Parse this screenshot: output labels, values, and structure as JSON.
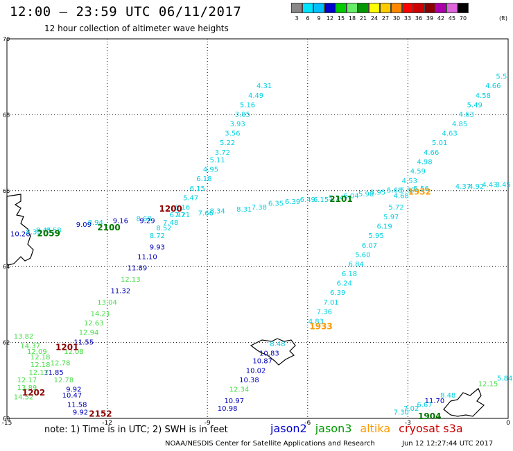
{
  "header": {
    "title": "12:00 – 23:59 UTC 06/11/2017",
    "subtitle": "12 hour collection of altimeter wave heights"
  },
  "legend": {
    "unit": "(ft)",
    "bins": [
      {
        "label": "3",
        "color": "#888888"
      },
      {
        "label": "6",
        "color": "#00e5ff"
      },
      {
        "label": "9",
        "color": "#00bfff"
      },
      {
        "label": "12",
        "color": "#0000cc"
      },
      {
        "label": "15",
        "color": "#00cc00"
      },
      {
        "label": "18",
        "color": "#66ee66"
      },
      {
        "label": "21",
        "color": "#009900"
      },
      {
        "label": "24",
        "color": "#ffff00"
      },
      {
        "label": "27",
        "color": "#ffcc00"
      },
      {
        "label": "30",
        "color": "#ff8800"
      },
      {
        "label": "33",
        "color": "#ff0000"
      },
      {
        "label": "36",
        "color": "#cc0000"
      },
      {
        "label": "39",
        "color": "#880000"
      },
      {
        "label": "42",
        "color": "#aa00aa"
      },
      {
        "label": "45",
        "color": "#dd66dd"
      },
      {
        "label": "70",
        "color": "#000000"
      }
    ]
  },
  "map": {
    "lon_range": [
      -15,
      0
    ],
    "lat_range": [
      60,
      70
    ],
    "lon_ticks": [
      "-15",
      "-12",
      "-9",
      "-6",
      "-3",
      "0"
    ],
    "lat_ticks": [
      "70",
      "68",
      "66",
      "64",
      "62",
      "60"
    ]
  },
  "colors": {
    "cyan": "#00d0e0",
    "blue": "#0000bb",
    "green": "#44dd44",
    "darkgreen": "#007700",
    "orange": "#ff9900",
    "darkred": "#8b0000"
  },
  "tracks": [
    {
      "points": [
        {
          "lon": -7.3,
          "lat": 68.7,
          "v": "4.31",
          "c": "cyan"
        },
        {
          "lon": -7.55,
          "lat": 68.45,
          "v": "4.49",
          "c": "cyan"
        },
        {
          "lon": -7.8,
          "lat": 68.2,
          "v": "5.16",
          "c": "cyan"
        },
        {
          "lon": -7.95,
          "lat": 67.95,
          "v": "3.85",
          "c": "cyan"
        },
        {
          "lon": -8.1,
          "lat": 67.7,
          "v": "3.93",
          "c": "cyan"
        },
        {
          "lon": -8.25,
          "lat": 67.45,
          "v": "3.56",
          "c": "cyan"
        },
        {
          "lon": -8.4,
          "lat": 67.2,
          "v": "5.22",
          "c": "cyan"
        },
        {
          "lon": -8.55,
          "lat": 66.95,
          "v": "3.72",
          "c": "cyan"
        },
        {
          "lon": -8.7,
          "lat": 66.75,
          "v": "5.11",
          "c": "cyan"
        },
        {
          "lon": -8.9,
          "lat": 66.5,
          "v": "4.95",
          "c": "cyan"
        },
        {
          "lon": -9.1,
          "lat": 66.25,
          "v": "6.18",
          "c": "cyan"
        },
        {
          "lon": -9.3,
          "lat": 66.0,
          "v": "6.15",
          "c": "cyan"
        },
        {
          "lon": -9.5,
          "lat": 65.75,
          "v": "5.47",
          "c": "cyan"
        },
        {
          "lon": -9.75,
          "lat": 65.5,
          "v": "6.16",
          "c": "cyan"
        },
        {
          "lon": -9.9,
          "lat": 65.3,
          "v": "6.97",
          "c": "cyan"
        },
        {
          "lon": -10.1,
          "lat": 65.1,
          "v": "7.48",
          "c": "cyan"
        },
        {
          "lon": -10.3,
          "lat": 64.95,
          "v": "8.52",
          "c": "cyan"
        },
        {
          "lon": -10.5,
          "lat": 64.75,
          "v": "8.72",
          "c": "cyan"
        },
        {
          "lon": -10.5,
          "lat": 64.45,
          "v": "9.93",
          "c": "blue"
        },
        {
          "lon": -10.8,
          "lat": 64.2,
          "v": "11.10",
          "c": "blue"
        },
        {
          "lon": -11.1,
          "lat": 63.9,
          "v": "11.89",
          "c": "blue"
        },
        {
          "lon": -11.3,
          "lat": 63.6,
          "v": "12.13",
          "c": "green"
        },
        {
          "lon": -11.6,
          "lat": 63.3,
          "v": "11.32",
          "c": "blue"
        },
        {
          "lon": -12.0,
          "lat": 63.0,
          "v": "13.04",
          "c": "green"
        },
        {
          "lon": -12.2,
          "lat": 62.7,
          "v": "14.21",
          "c": "green"
        },
        {
          "lon": -12.4,
          "lat": 62.45,
          "v": "12.63",
          "c": "green"
        },
        {
          "lon": -12.55,
          "lat": 62.2,
          "v": "12.94",
          "c": "green"
        },
        {
          "lon": -12.7,
          "lat": 61.95,
          "v": "11.55",
          "c": "blue"
        },
        {
          "lon": -13.0,
          "lat": 61.7,
          "v": "12.08",
          "c": "green"
        },
        {
          "lon": -13.4,
          "lat": 61.4,
          "v": "12.78",
          "c": "green"
        },
        {
          "lon": -13.6,
          "lat": 61.15,
          "v": "11.85",
          "c": "blue"
        },
        {
          "lon": -13.3,
          "lat": 60.95,
          "v": "12.78",
          "c": "green"
        },
        {
          "lon": -13.0,
          "lat": 60.7,
          "v": "9.92",
          "c": "blue"
        },
        {
          "lon": -13.05,
          "lat": 60.55,
          "v": "10.47",
          "c": "blue"
        },
        {
          "lon": -12.9,
          "lat": 60.3,
          "v": "11.58",
          "c": "blue"
        },
        {
          "lon": -12.8,
          "lat": 60.1,
          "v": "9.92",
          "c": "blue"
        }
      ]
    },
    {
      "points": [
        {
          "lon": -14.6,
          "lat": 64.8,
          "v": "10.26",
          "c": "blue"
        },
        {
          "lon": -14.2,
          "lat": 64.85,
          "v": "8.35",
          "c": "cyan"
        },
        {
          "lon": -13.9,
          "lat": 64.9,
          "v": "8.45",
          "c": "cyan"
        },
        {
          "lon": -13.6,
          "lat": 64.9,
          "v": "8.58",
          "c": "cyan"
        },
        {
          "lon": -12.7,
          "lat": 65.05,
          "v": "9.09",
          "c": "blue"
        },
        {
          "lon": -12.35,
          "lat": 65.1,
          "v": "8.94",
          "c": "cyan"
        },
        {
          "lon": -11.6,
          "lat": 65.15,
          "v": "9.16",
          "c": "blue"
        },
        {
          "lon": -10.9,
          "lat": 65.2,
          "v": "8.68",
          "c": "cyan"
        },
        {
          "lon": -10.8,
          "lat": 65.15,
          "v": "9.29",
          "c": "blue"
        },
        {
          "lon": -9.75,
          "lat": 65.3,
          "v": "7.21",
          "c": "cyan"
        },
        {
          "lon": -9.05,
          "lat": 65.35,
          "v": "7.66",
          "c": "cyan"
        },
        {
          "lon": -8.7,
          "lat": 65.4,
          "v": "8.34",
          "c": "cyan"
        },
        {
          "lon": -7.9,
          "lat": 65.45,
          "v": "8.31",
          "c": "cyan"
        },
        {
          "lon": -7.45,
          "lat": 65.5,
          "v": "7.38",
          "c": "cyan"
        },
        {
          "lon": -6.95,
          "lat": 65.6,
          "v": "6.35",
          "c": "cyan"
        },
        {
          "lon": -6.45,
          "lat": 65.65,
          "v": "6.39",
          "c": "cyan"
        },
        {
          "lon": -6.0,
          "lat": 65.7,
          "v": "6.49",
          "c": "cyan"
        },
        {
          "lon": -5.6,
          "lat": 65.7,
          "v": "6.15",
          "c": "cyan"
        },
        {
          "lon": -5.15,
          "lat": 65.75,
          "v": "5.14",
          "c": "cyan"
        },
        {
          "lon": -4.7,
          "lat": 65.8,
          "v": "6.04",
          "c": "cyan"
        },
        {
          "lon": -4.25,
          "lat": 65.85,
          "v": "5.98",
          "c": "cyan"
        },
        {
          "lon": -3.9,
          "lat": 65.9,
          "v": "5.95",
          "c": "cyan"
        },
        {
          "lon": -3.4,
          "lat": 65.95,
          "v": "5.68",
          "c": "cyan"
        },
        {
          "lon": -3.0,
          "lat": 65.95,
          "v": "5.87",
          "c": "cyan"
        },
        {
          "lon": -2.6,
          "lat": 66.0,
          "v": "5.56",
          "c": "cyan"
        },
        {
          "lon": -1.35,
          "lat": 66.05,
          "v": "4.37",
          "c": "cyan"
        },
        {
          "lon": -0.95,
          "lat": 66.05,
          "v": "4.92",
          "c": "cyan"
        },
        {
          "lon": -0.55,
          "lat": 66.1,
          "v": "4.43",
          "c": "cyan"
        },
        {
          "lon": -0.15,
          "lat": 66.1,
          "v": "3.45",
          "c": "cyan"
        }
      ]
    },
    {
      "points": [
        {
          "lon": -0.2,
          "lat": 68.95,
          "v": "5.5",
          "c": "cyan"
        },
        {
          "lon": -0.45,
          "lat": 68.7,
          "v": "4.66",
          "c": "cyan"
        },
        {
          "lon": -0.75,
          "lat": 68.45,
          "v": "4.58",
          "c": "cyan"
        },
        {
          "lon": -1.0,
          "lat": 68.2,
          "v": "5.49",
          "c": "cyan"
        },
        {
          "lon": -1.25,
          "lat": 67.95,
          "v": "4.63",
          "c": "cyan"
        },
        {
          "lon": -1.45,
          "lat": 67.7,
          "v": "4.85",
          "c": "cyan"
        },
        {
          "lon": -1.75,
          "lat": 67.45,
          "v": "4.63",
          "c": "cyan"
        },
        {
          "lon": -2.05,
          "lat": 67.2,
          "v": "5.01",
          "c": "cyan"
        },
        {
          "lon": -2.3,
          "lat": 66.95,
          "v": "4.66",
          "c": "cyan"
        },
        {
          "lon": -2.5,
          "lat": 66.7,
          "v": "4.98",
          "c": "cyan"
        },
        {
          "lon": -2.7,
          "lat": 66.45,
          "v": "4.59",
          "c": "cyan"
        },
        {
          "lon": -2.95,
          "lat": 66.2,
          "v": "4.53",
          "c": "cyan"
        },
        {
          "lon": -3.2,
          "lat": 65.8,
          "v": "4.68",
          "c": "cyan"
        },
        {
          "lon": -3.35,
          "lat": 65.5,
          "v": "5.72",
          "c": "cyan"
        },
        {
          "lon": -3.5,
          "lat": 65.25,
          "v": "5.97",
          "c": "cyan"
        },
        {
          "lon": -3.7,
          "lat": 65.0,
          "v": "6.19",
          "c": "cyan"
        },
        {
          "lon": -3.95,
          "lat": 64.75,
          "v": "5.95",
          "c": "cyan"
        },
        {
          "lon": -4.15,
          "lat": 64.5,
          "v": "6.07",
          "c": "cyan"
        },
        {
          "lon": -4.35,
          "lat": 64.25,
          "v": "5.60",
          "c": "cyan"
        },
        {
          "lon": -4.55,
          "lat": 64.0,
          "v": "6.84",
          "c": "cyan"
        },
        {
          "lon": -4.75,
          "lat": 63.75,
          "v": "6.18",
          "c": "cyan"
        },
        {
          "lon": -4.9,
          "lat": 63.5,
          "v": "6.24",
          "c": "cyan"
        },
        {
          "lon": -5.1,
          "lat": 63.25,
          "v": "6.39",
          "c": "cyan"
        },
        {
          "lon": -5.3,
          "lat": 63.0,
          "v": "7.01",
          "c": "cyan"
        },
        {
          "lon": -5.5,
          "lat": 62.75,
          "v": "7.36",
          "c": "cyan"
        },
        {
          "lon": -5.75,
          "lat": 62.5,
          "v": "4.83",
          "c": "cyan"
        },
        {
          "lon": -6.9,
          "lat": 61.9,
          "v": "8.48",
          "c": "cyan"
        },
        {
          "lon": -7.15,
          "lat": 61.65,
          "v": "10.83",
          "c": "blue"
        },
        {
          "lon": -7.35,
          "lat": 61.45,
          "v": "10.87",
          "c": "blue"
        },
        {
          "lon": -7.55,
          "lat": 61.2,
          "v": "10.02",
          "c": "blue"
        },
        {
          "lon": -7.75,
          "lat": 60.95,
          "v": "10.38",
          "c": "blue"
        },
        {
          "lon": -8.05,
          "lat": 60.7,
          "v": "12.34",
          "c": "green"
        },
        {
          "lon": -8.2,
          "lat": 60.4,
          "v": "10.97",
          "c": "blue"
        },
        {
          "lon": -8.4,
          "lat": 60.2,
          "v": "10.98",
          "c": "blue"
        }
      ]
    },
    {
      "points": [
        {
          "lon": -14.5,
          "lat": 62.1,
          "v": "13.82",
          "c": "green"
        },
        {
          "lon": -14.3,
          "lat": 61.85,
          "v": "14.37",
          "c": "green"
        },
        {
          "lon": -14.1,
          "lat": 61.7,
          "v": "12.09",
          "c": "green"
        },
        {
          "lon": -14.0,
          "lat": 61.55,
          "v": "12.18",
          "c": "green"
        },
        {
          "lon": -14.0,
          "lat": 61.35,
          "v": "12.18",
          "c": "green"
        },
        {
          "lon": -14.05,
          "lat": 61.15,
          "v": "12.17",
          "c": "green"
        },
        {
          "lon": -14.4,
          "lat": 60.95,
          "v": "12.17",
          "c": "green"
        },
        {
          "lon": -14.4,
          "lat": 60.75,
          "v": "13.89",
          "c": "green"
        },
        {
          "lon": -14.5,
          "lat": 60.5,
          "v": "14.52",
          "c": "green"
        }
      ]
    },
    {
      "points": [
        {
          "lon": -0.1,
          "lat": 61.0,
          "v": "5.84",
          "c": "cyan"
        },
        {
          "lon": -0.6,
          "lat": 60.85,
          "v": "12.15",
          "c": "green"
        },
        {
          "lon": -1.8,
          "lat": 60.55,
          "v": "8.48",
          "c": "cyan"
        },
        {
          "lon": -2.2,
          "lat": 60.4,
          "v": "11.70",
          "c": "blue"
        },
        {
          "lon": -2.5,
          "lat": 60.3,
          "v": "6.67",
          "c": "cyan"
        },
        {
          "lon": -2.9,
          "lat": 60.2,
          "v": "7.02",
          "c": "cyan"
        },
        {
          "lon": -3.2,
          "lat": 60.1,
          "v": "7.30",
          "c": "cyan"
        }
      ]
    }
  ],
  "time_labels": [
    {
      "lon": -10.1,
      "lat": 65.45,
      "t": "1200",
      "c": "darkred"
    },
    {
      "lon": -11.95,
      "lat": 64.95,
      "t": "2100",
      "c": "darkgreen"
    },
    {
      "lon": -13.75,
      "lat": 64.8,
      "t": "2059",
      "c": "darkgreen"
    },
    {
      "lon": -5.0,
      "lat": 65.7,
      "t": "2101",
      "c": "darkgreen"
    },
    {
      "lon": -2.65,
      "lat": 65.9,
      "t": "1932",
      "c": "orange"
    },
    {
      "lon": -5.6,
      "lat": 62.35,
      "t": "1933",
      "c": "orange"
    },
    {
      "lon": -13.2,
      "lat": 61.8,
      "t": "1201",
      "c": "darkred"
    },
    {
      "lon": -14.2,
      "lat": 60.6,
      "t": "1202",
      "c": "darkred"
    },
    {
      "lon": -12.2,
      "lat": 60.05,
      "t": "2152",
      "c": "darkred"
    },
    {
      "lon": -2.35,
      "lat": 59.98,
      "t": "1904",
      "c": "darkgreen"
    }
  ],
  "footer": {
    "note": "note: 1) Time is in UTC; 2) SWH is in feet",
    "satellites": [
      {
        "name": "jason2",
        "color": "#0000cc"
      },
      {
        "name": "jason3",
        "color": "#009900"
      },
      {
        "name": "altika",
        "color": "#ff9900"
      },
      {
        "name": "cryosat s3a",
        "color": "#cc0000"
      }
    ],
    "credit": "NOAA/NESDIS Center for Satellite Applications and Research",
    "generated": "Jun 12 12:27:44 UTC 2017"
  }
}
